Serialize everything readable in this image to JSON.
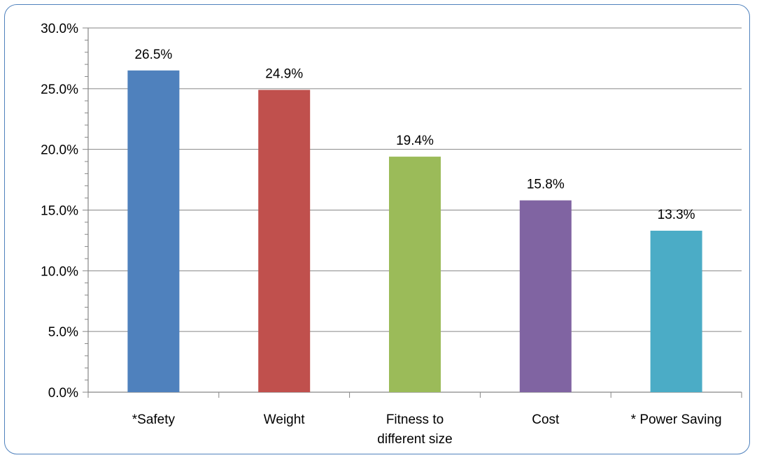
{
  "chart_data": {
    "type": "bar",
    "categories": [
      "*Safety",
      "Weight",
      "Fitness to\ndifferent size",
      "Cost",
      "* Power Saving"
    ],
    "values": [
      26.5,
      24.9,
      19.4,
      15.8,
      13.3
    ],
    "data_labels": [
      "26.5%",
      "24.9%",
      "19.4%",
      "15.8%",
      "13.3%"
    ],
    "colors": [
      "#4f81bd",
      "#c0504d",
      "#9bbb59",
      "#8064a2",
      "#4bacc6"
    ],
    "ylim": [
      0,
      30
    ],
    "yticks": [
      0,
      5,
      10,
      15,
      20,
      25,
      30
    ],
    "ytick_labels": [
      "0.0%",
      "5.0%",
      "10.0%",
      "15.0%",
      "20.0%",
      "25.0%",
      "30.0%"
    ],
    "grid": true,
    "legend": "none"
  }
}
